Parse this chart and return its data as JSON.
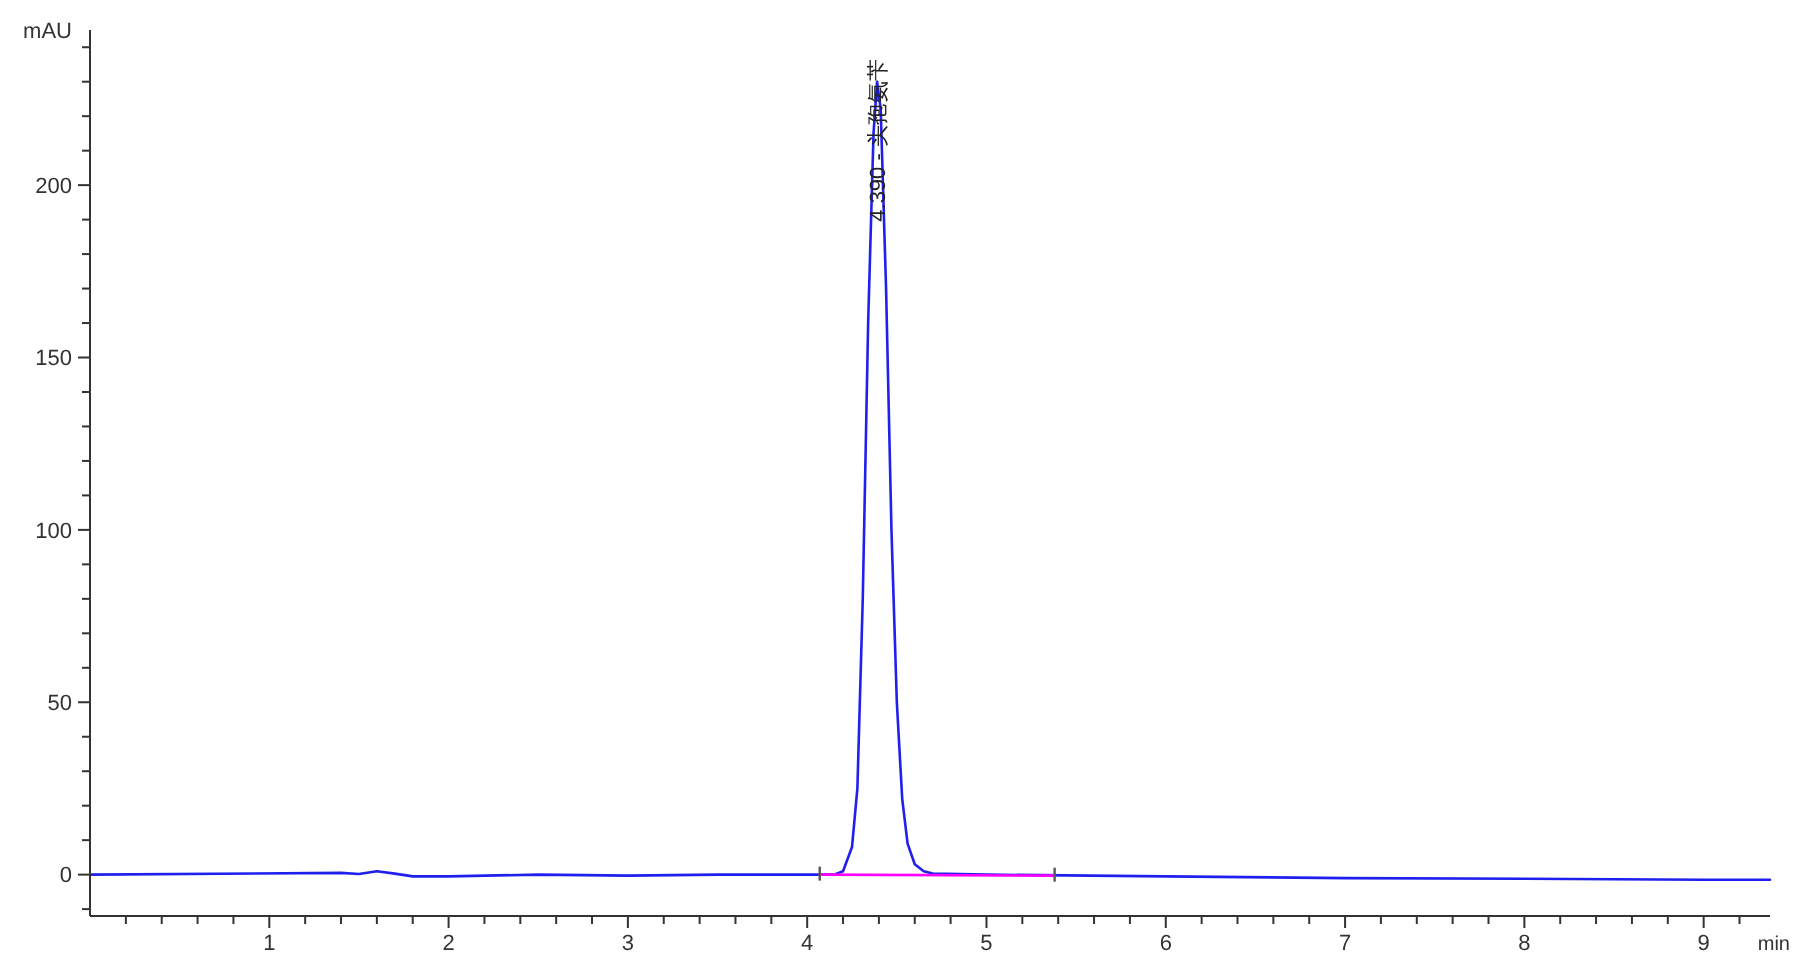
{
  "chart_data": {
    "type": "line",
    "xlabel": "min",
    "ylabel": "mAU",
    "xlim": [
      0,
      9.37
    ],
    "ylim": [
      -12,
      245
    ],
    "xticks": [
      {
        "value": 0.2,
        "label": null
      },
      {
        "value": 0.4,
        "label": null
      },
      {
        "value": 0.6,
        "label": null
      },
      {
        "value": 0.8,
        "label": null
      },
      1,
      {
        "value": 1.2,
        "label": null
      },
      {
        "value": 1.4,
        "label": null
      },
      {
        "value": 1.6,
        "label": null
      },
      {
        "value": 1.8,
        "label": null
      },
      2,
      {
        "value": 2.2,
        "label": null
      },
      {
        "value": 2.4,
        "label": null
      },
      {
        "value": 2.6,
        "label": null
      },
      {
        "value": 2.8,
        "label": null
      },
      3,
      {
        "value": 3.2,
        "label": null
      },
      {
        "value": 3.4,
        "label": null
      },
      {
        "value": 3.6,
        "label": null
      },
      {
        "value": 3.8,
        "label": null
      },
      4,
      {
        "value": 4.2,
        "label": null
      },
      {
        "value": 4.4,
        "label": null
      },
      {
        "value": 4.6,
        "label": null
      },
      {
        "value": 4.8,
        "label": null
      },
      5,
      {
        "value": 5.2,
        "label": null
      },
      {
        "value": 5.4,
        "label": null
      },
      {
        "value": 5.6,
        "label": null
      },
      {
        "value": 5.8,
        "label": null
      },
      6,
      {
        "value": 6.2,
        "label": null
      },
      {
        "value": 6.4,
        "label": null
      },
      {
        "value": 6.6,
        "label": null
      },
      {
        "value": 6.8,
        "label": null
      },
      7,
      {
        "value": 7.2,
        "label": null
      },
      {
        "value": 7.4,
        "label": null
      },
      {
        "value": 7.6,
        "label": null
      },
      {
        "value": 7.8,
        "label": null
      },
      8,
      {
        "value": 8.2,
        "label": null
      },
      {
        "value": 8.4,
        "label": null
      },
      {
        "value": 8.6,
        "label": null
      },
      {
        "value": 8.8,
        "label": null
      },
      9,
      {
        "value": 9.2,
        "label": null
      }
    ],
    "yticks": [
      {
        "value": -10,
        "label": null
      },
      0,
      {
        "value": 10,
        "label": null
      },
      {
        "value": 20,
        "label": null
      },
      {
        "value": 30,
        "label": null
      },
      {
        "value": 40,
        "label": null
      },
      50,
      {
        "value": 60,
        "label": null
      },
      {
        "value": 70,
        "label": null
      },
      {
        "value": 80,
        "label": null
      },
      {
        "value": 90,
        "label": null
      },
      100,
      {
        "value": 110,
        "label": null
      },
      {
        "value": 120,
        "label": null
      },
      {
        "value": 130,
        "label": null
      },
      {
        "value": 140,
        "label": null
      },
      150,
      {
        "value": 160,
        "label": null
      },
      {
        "value": 170,
        "label": null
      },
      {
        "value": 180,
        "label": null
      },
      {
        "value": 190,
        "label": null
      },
      200,
      {
        "value": 210,
        "label": null
      },
      {
        "value": 220,
        "label": null
      },
      {
        "value": 230,
        "label": null
      },
      {
        "value": 240,
        "label": null
      }
    ],
    "series": [
      {
        "color": "#2020ee",
        "x": [
          0,
          1.4,
          1.5,
          1.6,
          1.7,
          1.8,
          2.0,
          2.5,
          3.0,
          3.5,
          4.0,
          4.15,
          4.2,
          4.25,
          4.28,
          4.31,
          4.34,
          4.37,
          4.39,
          4.41,
          4.44,
          4.47,
          4.5,
          4.53,
          4.56,
          4.6,
          4.65,
          4.7,
          5.0,
          6.0,
          7.0,
          8.0,
          9.0,
          9.37
        ],
        "values": [
          0,
          0.5,
          0.2,
          1,
          0.3,
          -0.5,
          -0.5,
          0,
          -0.3,
          0,
          0,
          0,
          1,
          8,
          25,
          80,
          160,
          215,
          230,
          222,
          170,
          100,
          50,
          22,
          9,
          3,
          1,
          0.3,
          0,
          -0.5,
          -1,
          -1.2,
          -1.5,
          -1.5
        ]
      },
      {
        "color": "#ff00ff",
        "x": [
          4.07,
          5.38
        ],
        "values": [
          0,
          -0.3
        ]
      }
    ],
    "annotations": [
      {
        "text": "4.390 - 头孢氨苄",
        "x": 4.39,
        "y": 230
      }
    ]
  }
}
